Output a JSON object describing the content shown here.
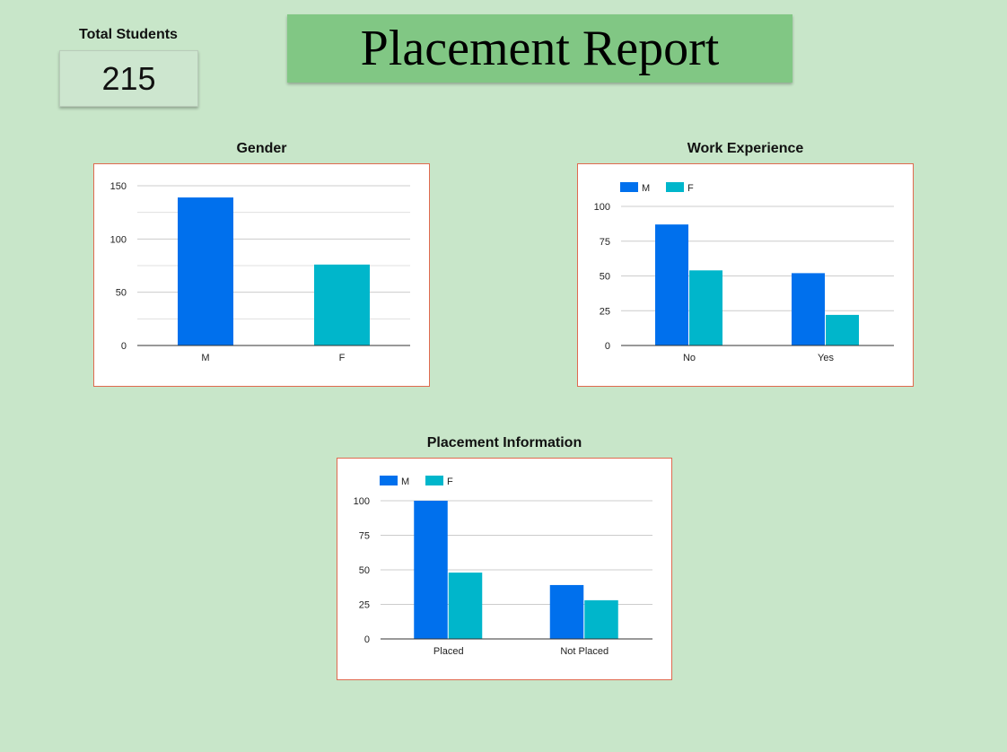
{
  "header": {
    "title": "Placement Report",
    "kpi_label": "Total Students",
    "kpi_value": "215"
  },
  "colors": {
    "M": "#0070ed",
    "F": "#00b6cb",
    "grid": "#cccccc",
    "axis": "#333333"
  },
  "chart_data": [
    {
      "id": "gender",
      "type": "bar",
      "title": "Gender",
      "categories": [
        "M",
        "F"
      ],
      "values": [
        139,
        76
      ],
      "colors": [
        "#0070ed",
        "#00b6cb"
      ],
      "ylim": [
        0,
        150
      ],
      "yticks": [
        0,
        50,
        100,
        150
      ],
      "grid": true,
      "legend": null
    },
    {
      "id": "work-experience",
      "type": "bar",
      "title": "Work Experience",
      "categories": [
        "No",
        "Yes"
      ],
      "series": [
        {
          "name": "M",
          "values": [
            87,
            52
          ]
        },
        {
          "name": "F",
          "values": [
            54,
            22
          ]
        }
      ],
      "ylim": [
        0,
        100
      ],
      "yticks": [
        0,
        25,
        50,
        75,
        100
      ],
      "grid": true,
      "legend": "top-left"
    },
    {
      "id": "placement-information",
      "type": "bar",
      "title": "Placement Information",
      "categories": [
        "Placed",
        "Not Placed"
      ],
      "series": [
        {
          "name": "M",
          "values": [
            100,
            39
          ]
        },
        {
          "name": "F",
          "values": [
            48,
            28
          ]
        }
      ],
      "ylim": [
        0,
        100
      ],
      "yticks": [
        0,
        25,
        50,
        75,
        100
      ],
      "grid": true,
      "legend": "top-left"
    }
  ]
}
